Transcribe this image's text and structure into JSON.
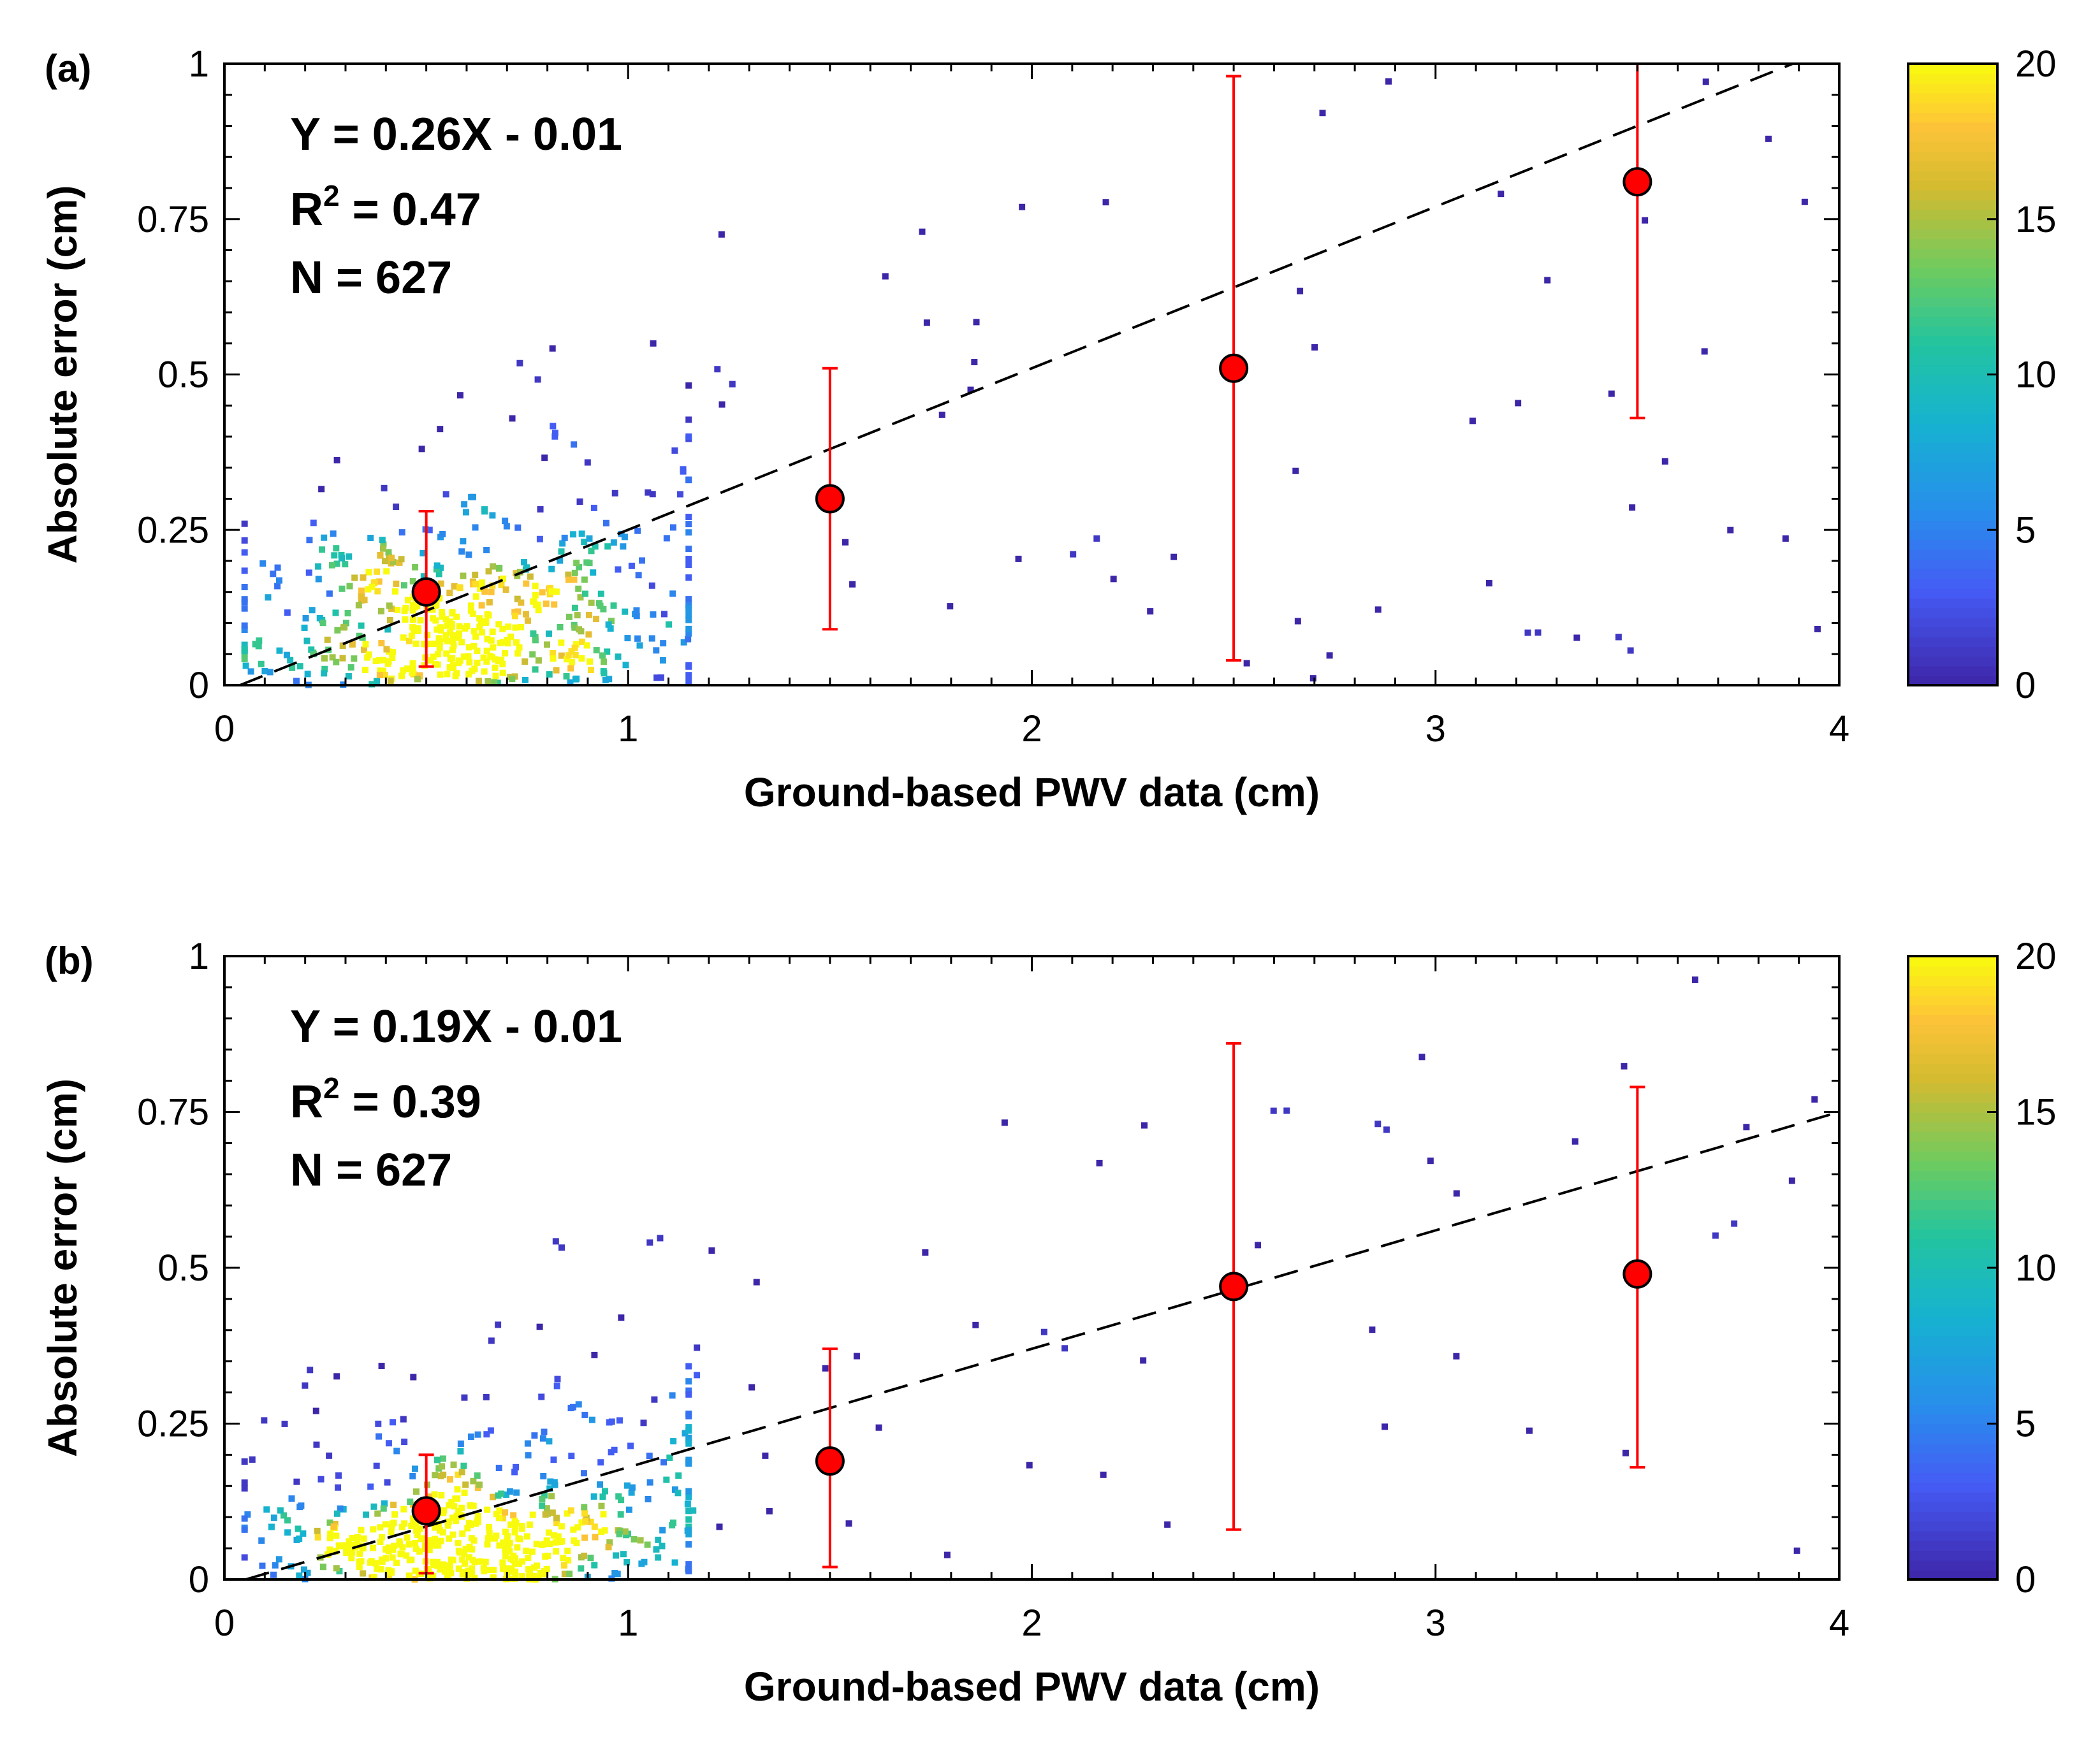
{
  "chart_data": [
    {
      "panel_label": "(a)",
      "type": "scatter",
      "xlabel": "Ground-based PWV data (cm)",
      "ylabel": "Absolute error (cm)",
      "xlim": [
        0,
        4
      ],
      "ylim": [
        0,
        1
      ],
      "x_ticks": [
        "0",
        "1",
        "2",
        "3",
        "4"
      ],
      "y_ticks": [
        "0",
        "0.25",
        "0.5",
        "0.75",
        "1"
      ],
      "colorbar": {
        "range": [
          0,
          20
        ],
        "ticks": [
          "0",
          "5",
          "10",
          "15",
          "20"
        ],
        "colormap": "parula"
      },
      "stats": {
        "equation": "Y = 0.26X - 0.01",
        "r2_prefix": "R",
        "r2_sup": "2",
        "r2_value": " = 0.47",
        "n": "N = 627"
      },
      "fit_line": {
        "slope": 0.26,
        "intercept": -0.01,
        "style": "dashed",
        "color": "#000000"
      },
      "binned_means": [
        {
          "x": 0.5,
          "y": 0.15,
          "lower": 0.03,
          "upper": 0.28
        },
        {
          "x": 1.5,
          "y": 0.3,
          "lower": 0.09,
          "upper": 0.51
        },
        {
          "x": 2.5,
          "y": 0.51,
          "lower": 0.04,
          "upper": 0.98
        },
        {
          "x": 3.5,
          "y": 0.81,
          "lower": 0.43,
          "upper": 1.0
        }
      ],
      "scatter_density": {
        "n": 627,
        "seed": 17,
        "clusters": [
          {
            "cx": 0.55,
            "cy": 0.09,
            "sx": 0.25,
            "sy": 0.08,
            "share": 0.68
          },
          {
            "cx": 0.85,
            "cy": 0.22,
            "sx": 0.3,
            "sy": 0.13,
            "share": 0.2
          }
        ],
        "sparse_xmax": 3.95,
        "sparse_ymax": 1.0
      }
    },
    {
      "panel_label": "(b)",
      "type": "scatter",
      "xlabel": "Ground-based PWV data (cm)",
      "ylabel": "Absolute error (cm)",
      "xlim": [
        0,
        4
      ],
      "ylim": [
        0,
        1
      ],
      "x_ticks": [
        "0",
        "1",
        "2",
        "3",
        "4"
      ],
      "y_ticks": [
        "0",
        "0.25",
        "0.5",
        "0.75",
        "1"
      ],
      "colorbar": {
        "range": [
          0,
          20
        ],
        "ticks": [
          "0",
          "5",
          "10",
          "15",
          "20"
        ],
        "colormap": "parula"
      },
      "stats": {
        "equation": "Y = 0.19X - 0.01",
        "r2_prefix": "R",
        "r2_sup": "2",
        "r2_value": " = 0.39",
        "n": "N = 627"
      },
      "fit_line": {
        "slope": 0.19,
        "intercept": -0.01,
        "style": "dashed",
        "color": "#000000"
      },
      "binned_means": [
        {
          "x": 0.5,
          "y": 0.11,
          "lower": 0.01,
          "upper": 0.2
        },
        {
          "x": 1.5,
          "y": 0.19,
          "lower": 0.02,
          "upper": 0.37
        },
        {
          "x": 2.5,
          "y": 0.47,
          "lower": 0.08,
          "upper": 0.86
        },
        {
          "x": 3.5,
          "y": 0.49,
          "lower": 0.18,
          "upper": 0.79
        }
      ],
      "scatter_density": {
        "n": 627,
        "seed": 41,
        "clusters": [
          {
            "cx": 0.58,
            "cy": 0.06,
            "sx": 0.25,
            "sy": 0.06,
            "share": 0.7
          },
          {
            "cx": 0.85,
            "cy": 0.17,
            "sx": 0.3,
            "sy": 0.1,
            "share": 0.2
          }
        ],
        "sparse_xmax": 3.95,
        "sparse_ymax": 1.0
      }
    }
  ],
  "colors": {
    "marker_fill": "#ff0000",
    "errorbar": "#ff0000",
    "axis": "#000000"
  }
}
